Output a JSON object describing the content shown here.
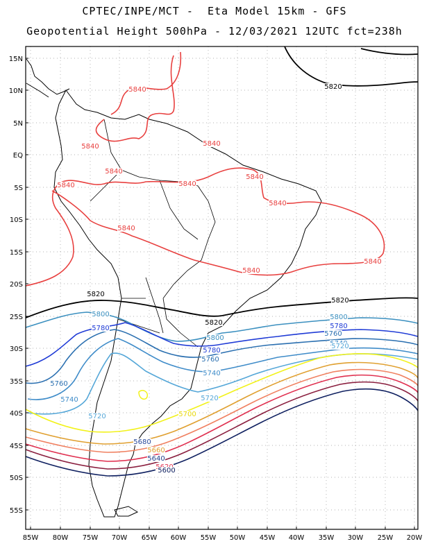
{
  "header": {
    "line1": "CPTEC/INPE/MCT -  Eta Model 15km - GFS",
    "line2": "Geopotential Height 500hPa - 12/03/2021 12UTC fct=238h"
  },
  "axes": {
    "lat_labels": [
      "15N",
      "10N",
      "5N",
      "EQ",
      "5S",
      "10S",
      "15S",
      "20S",
      "25S",
      "30S",
      "35S",
      "40S",
      "45S",
      "50S",
      "55S"
    ],
    "lon_labels": [
      "85W",
      "80W",
      "75W",
      "70W",
      "65W",
      "60W",
      "55W",
      "50W",
      "45W",
      "40W",
      "35W",
      "30W",
      "25W",
      "20W"
    ]
  },
  "contours": [
    {
      "value": "5840",
      "color": "#e8403f"
    },
    {
      "value": "5820",
      "color": "#000000"
    },
    {
      "value": "5800",
      "color": "#3a8fbf"
    },
    {
      "value": "5780",
      "color": "#1f3bd6"
    },
    {
      "value": "5760",
      "color": "#2a6fb0"
    },
    {
      "value": "5740",
      "color": "#3f8cc9"
    },
    {
      "value": "5720",
      "color": "#55a7d8"
    },
    {
      "value": "5700",
      "color": "#f2f21a"
    },
    {
      "value": "5680",
      "color": "#e0a030"
    },
    {
      "value": "5660",
      "color": "#f08060"
    },
    {
      "value": "5640",
      "color": "#e03050"
    },
    {
      "value": "5620",
      "color": "#8a1f3f"
    },
    {
      "value": "5600",
      "color": "#0f2060"
    }
  ],
  "labels": [
    {
      "text": "5840",
      "color": "#e8403f"
    },
    {
      "text": "5840",
      "color": "#e8403f"
    },
    {
      "text": "5840",
      "color": "#e8403f"
    },
    {
      "text": "5840",
      "color": "#e8403f"
    },
    {
      "text": "5840",
      "color": "#e8403f"
    },
    {
      "text": "5840",
      "color": "#e8403f"
    },
    {
      "text": "5840",
      "color": "#e8403f"
    },
    {
      "text": "5840",
      "color": "#e8403f"
    },
    {
      "text": "5840",
      "color": "#e8403f"
    },
    {
      "text": "5840",
      "color": "#e8403f"
    },
    {
      "text": "5840",
      "color": "#e8403f"
    },
    {
      "text": "5820",
      "color": "#000000"
    },
    {
      "text": "5820",
      "color": "#000000"
    },
    {
      "text": "5820",
      "color": "#000000"
    },
    {
      "text": "5820",
      "color": "#000000"
    },
    {
      "text": "5800",
      "color": "#3a8fbf"
    },
    {
      "text": "5800",
      "color": "#3a8fbf"
    },
    {
      "text": "5800",
      "color": "#3a8fbf"
    },
    {
      "text": "5780",
      "color": "#1f3bd6"
    },
    {
      "text": "5780",
      "color": "#1f3bd6"
    },
    {
      "text": "5780",
      "color": "#1f3bd6"
    },
    {
      "text": "5760",
      "color": "#2a6fb0"
    },
    {
      "text": "5760",
      "color": "#2a6fb0"
    },
    {
      "text": "5760",
      "color": "#2a6fb0"
    },
    {
      "text": "5740",
      "color": "#3f8cc9"
    },
    {
      "text": "5740",
      "color": "#3f8cc9"
    },
    {
      "text": "5740",
      "color": "#3f8cc9"
    },
    {
      "text": "5720",
      "color": "#55a7d8"
    },
    {
      "text": "5720",
      "color": "#55a7d8"
    },
    {
      "text": "5720",
      "color": "#55a7d8"
    },
    {
      "text": "5700",
      "color": "#e8d80a"
    },
    {
      "text": "5680",
      "color": "#2a4a9a"
    },
    {
      "text": "5660",
      "color": "#e0a030"
    },
    {
      "text": "5640",
      "color": "#1f3f8a"
    },
    {
      "text": "5620",
      "color": "#e03050"
    },
    {
      "text": "5600",
      "color": "#0f2060"
    }
  ]
}
